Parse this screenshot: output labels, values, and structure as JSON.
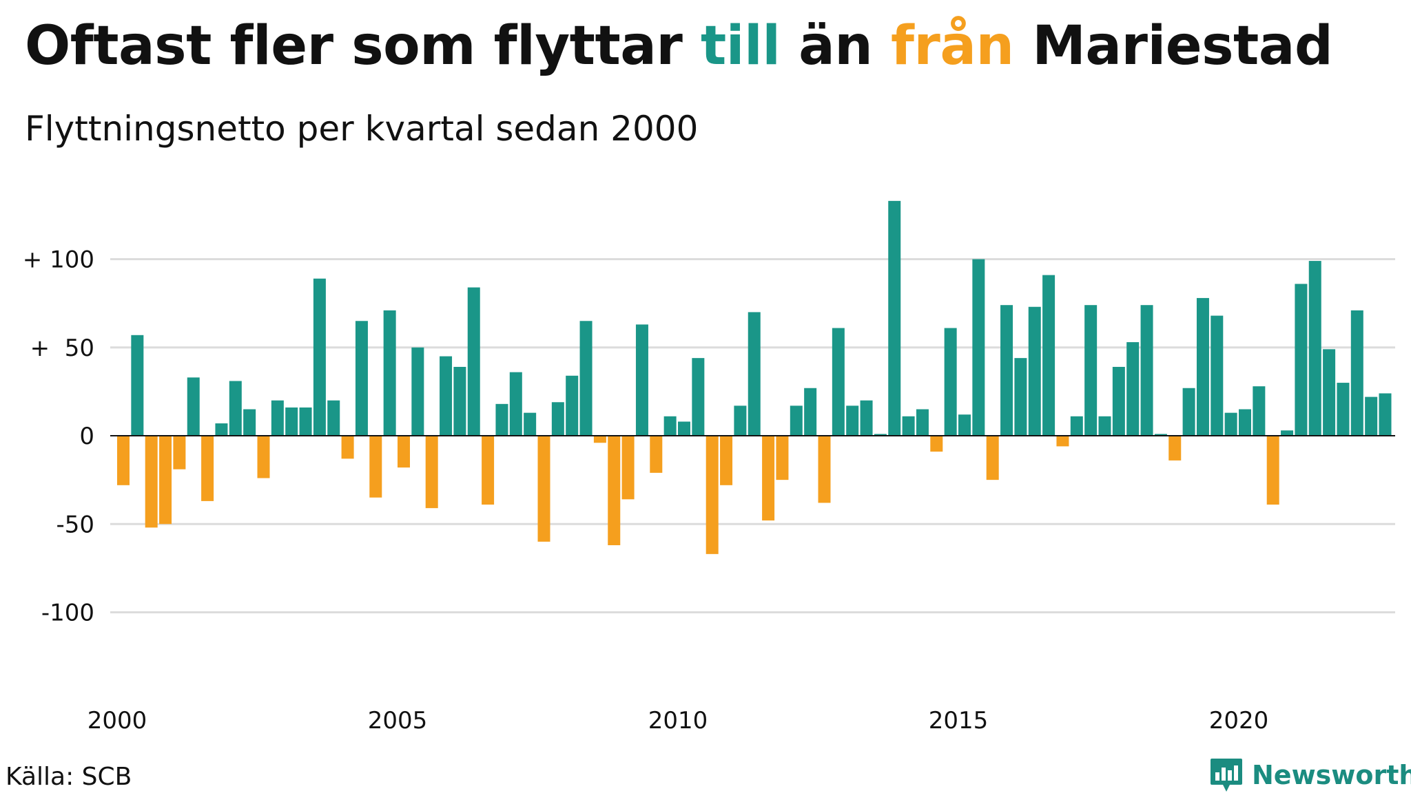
{
  "title": {
    "part1": "Oftast fler som flyttar",
    "part2": "till",
    "part3": "än",
    "part4": "från",
    "part5": "Mariestad"
  },
  "subtitle": "Flyttningsnetto per kvartal sedan 2000",
  "source": "Källa: SCB",
  "brand": {
    "name": "Newsworthy",
    "icon": "newsworthy-logo-icon"
  },
  "colors": {
    "positive": "#1a9688",
    "negative": "#f59f1e",
    "grid": "#dcdcdc",
    "text": "#111111",
    "brand": "#1b8c80"
  },
  "chart_data": {
    "type": "bar",
    "x_start": "2000 Q1",
    "period": "quarter",
    "ylim": [
      -140,
      140
    ],
    "yticks": [
      100,
      50,
      0,
      -50,
      -100
    ],
    "ytick_labels": [
      "+ 100",
      "+  50",
      "0",
      "-50",
      "-100"
    ],
    "xtick_labels": [
      "2000",
      "2005",
      "2010",
      "2015",
      "2020"
    ],
    "grid": true,
    "values": [
      -28,
      57,
      -52,
      -50,
      -19,
      33,
      -37,
      7,
      31,
      15,
      -24,
      20,
      16,
      16,
      89,
      20,
      -13,
      65,
      -35,
      71,
      -18,
      50,
      -41,
      45,
      39,
      84,
      -39,
      18,
      36,
      13,
      -60,
      19,
      34,
      65,
      -4,
      -62,
      -36,
      63,
      -21,
      11,
      8,
      44,
      -67,
      -28,
      17,
      70,
      -48,
      -25,
      17,
      27,
      -38,
      61,
      17,
      20,
      1,
      133,
      11,
      15,
      -9,
      61,
      12,
      100,
      -25,
      74,
      44,
      73,
      91,
      -6,
      11,
      74,
      11,
      39,
      53,
      74,
      1,
      -14,
      27,
      78,
      68,
      13,
      15,
      28,
      -39,
      3,
      86,
      99,
      49,
      30,
      71,
      22,
      24
    ]
  }
}
